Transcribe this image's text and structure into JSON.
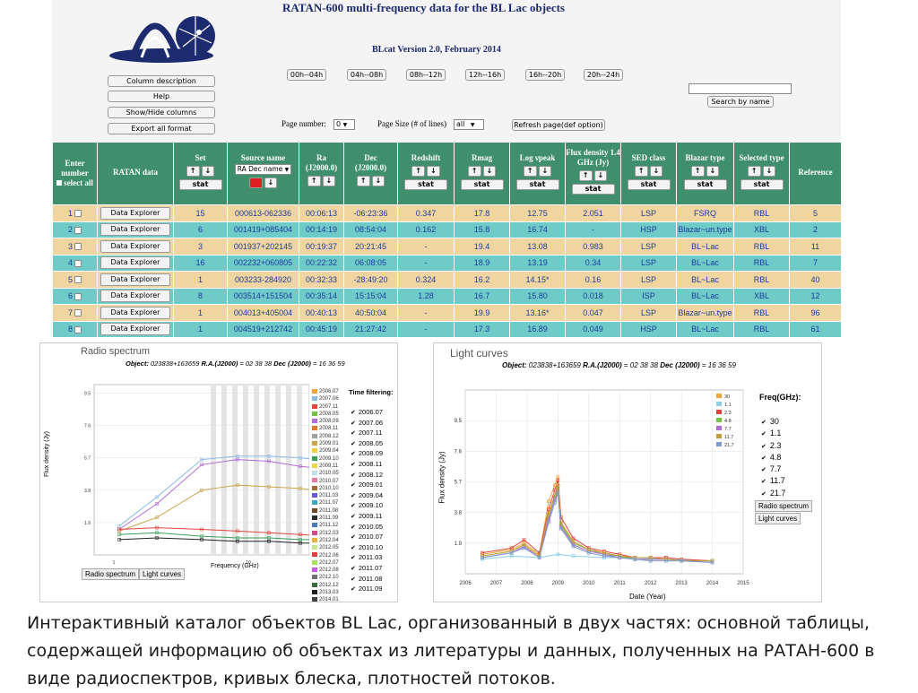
{
  "header": {
    "title": "RATAN-600 multi-frequency data for the BL Lac objects",
    "version": "BLcat Version 2.0, February 2014"
  },
  "sidebar": [
    "Column description",
    "Help",
    "Show/Hide columns",
    "Export all format"
  ],
  "time_buttons": [
    "00h--04h",
    "04h--08h",
    "08h--12h",
    "12h--16h",
    "16h--20h",
    "20h--24h"
  ],
  "search": {
    "value": "",
    "button": "Search by name"
  },
  "paging": {
    "page_label": "Page number:",
    "page_value": "0",
    "size_label": "Page Size (# of lines)",
    "size_value": "all",
    "refresh": "Refresh page(def option)"
  },
  "table": {
    "headers": {
      "enter": "Enter number",
      "select_all": "select all",
      "ratan": "RATAN data",
      "set": "Set",
      "source": "Source name",
      "source_sort": "RA Dec name",
      "ra": "Ra (J2000.0)",
      "dec": "Dec (J2000.0)",
      "redshift": "Redshift",
      "rmag": "Rmag",
      "lognu": "Log νpeak",
      "flux": "Flux density 1.4 GHz (Jy)",
      "sed": "SED class",
      "blazar": "Blazar type",
      "selected": "Selected type",
      "reference": "Reference"
    },
    "stat_label": "stat",
    "up": "↑",
    "down": "↓",
    "explorer_label": "Data Explorer",
    "rows": [
      {
        "n": "1",
        "set": "15",
        "name": "000613-062336",
        "ra": "00:06:13",
        "dec": "-06:23:36",
        "z": "0.347",
        "rmag": "17.8",
        "lognu": "12.75",
        "flux": "2.051",
        "sed": "LSP",
        "btype": "FSRQ",
        "stype": "RBL",
        "ref": "5"
      },
      {
        "n": "2",
        "set": "6",
        "name": "001419+085404",
        "ra": "00:14:19",
        "dec": "08:54:04",
        "z": "0.162",
        "rmag": "15.8",
        "lognu": "16.74",
        "flux": "-",
        "sed": "HSP",
        "btype": "Blazar~un.type",
        "stype": "XBL",
        "ref": "2"
      },
      {
        "n": "3",
        "set": "3",
        "name": "001937+202145",
        "ra": "00:19:37",
        "dec": "20:21:45",
        "z": "-",
        "rmag": "19.4",
        "lognu": "13.08",
        "flux": "0.983",
        "sed": "LSP",
        "btype": "BL~Lac",
        "stype": "RBL",
        "ref": "11"
      },
      {
        "n": "4",
        "set": "16",
        "name": "002232+060805",
        "ra": "00:22:32",
        "dec": "06:08:05",
        "z": "-",
        "rmag": "18.9",
        "lognu": "13.19",
        "flux": "0.34",
        "sed": "LSP",
        "btype": "BL~Lac",
        "stype": "RBL",
        "ref": "7"
      },
      {
        "n": "5",
        "set": "1",
        "name": "003233-284920",
        "ra": "00:32:33",
        "dec": "-28:49:20",
        "z": "0.324",
        "rmag": "16.2",
        "lognu": "14.15*",
        "flux": "0.16",
        "sed": "LSP",
        "btype": "BL~Lac",
        "stype": "RBL",
        "ref": "40"
      },
      {
        "n": "6",
        "set": "8",
        "name": "003514+151504",
        "ra": "00:35:14",
        "dec": "15:15:04",
        "z": "1.28",
        "rmag": "16.7",
        "lognu": "15.80",
        "flux": "0.018",
        "sed": "ISP",
        "btype": "BL~Lac",
        "stype": "XBL",
        "ref": "12"
      },
      {
        "n": "7",
        "set": "1",
        "name": "004013+405004",
        "ra": "00:40:13",
        "dec": "40:50:04",
        "z": "-",
        "rmag": "19.9",
        "lognu": "13.16*",
        "flux": "0.047",
        "sed": "LSP",
        "btype": "Blazar~un.type",
        "stype": "RBL",
        "ref": "96"
      },
      {
        "n": "8",
        "set": "1",
        "name": "004519+212742",
        "ra": "00:45:19",
        "dec": "21:27:42",
        "z": "-",
        "rmag": "17.3",
        "lognu": "16.89",
        "flux": "0.049",
        "sed": "HSP",
        "btype": "BL~Lac",
        "stype": "RBL",
        "ref": "61"
      }
    ]
  },
  "radio": {
    "title": "Radio spectrum",
    "object_label": "Object:",
    "object_name": "023838+163659",
    "ra_label": "R.A.(J2000)",
    "ra_value": "= 02 38 38",
    "dec_label": "Dec (J2000)",
    "dec_value": "= 16 36 59",
    "time_filtering": "Time filtering:",
    "epochs": [
      "2006.07",
      "2007.06",
      "2007.11",
      "2008.05",
      "2008.09",
      "2008.11",
      "2008.12",
      "2009.01",
      "2009.04",
      "2009.10",
      "2009.11",
      "2010.05",
      "2010.07",
      "2010.10",
      "2011.03",
      "2011.07",
      "2011.08",
      "2011.09",
      "2011.12",
      "2012.03",
      "2012.04",
      "2012.05",
      "2012.06",
      "2012.07",
      "2012.08",
      "2012.10",
      "2012.12",
      "2013.03",
      "2014.01"
    ],
    "epoch_colors": [
      "#f2a33a",
      "#8bb9e8",
      "#e0473c",
      "#77c043",
      "#b26ad6",
      "#e07a2c",
      "#a0a0a0",
      "#c9a44a",
      "#f0d040",
      "#3a9e5a",
      "#e8d84a",
      "#c0e0f0",
      "#e67aa0",
      "#9c6b3a",
      "#6a5ad6",
      "#3aa8c0",
      "#6e4a2a",
      "#2a2a2a",
      "#4a7ac0",
      "#d04a8a",
      "#e8b040",
      "#c0e890",
      "#e04040",
      "#a8e060",
      "#c060e0",
      "#707070",
      "#3a6a3a",
      "#202020",
      "#404040"
    ],
    "filter_list": [
      "2006.07",
      "2007.06",
      "2007.11",
      "2008.05",
      "2008.09",
      "2008.11",
      "2008.12",
      "2009.01",
      "2009.04",
      "2009.10",
      "2009.11",
      "2010.05",
      "2010.07",
      "2010.10",
      "2011.03",
      "2011.07",
      "2011.08",
      "2011.09"
    ],
    "buttons": [
      "Radio spectrum",
      "Light curves"
    ]
  },
  "light": {
    "title": "Light curves",
    "object_label": "Object:",
    "object_name": "023838+163659",
    "ra_label": "R.A.(J2000)",
    "ra_value": "= 02 38 38",
    "dec_label": "Dec (J2000)",
    "dec_value": "= 16 36 59",
    "freq_title": "Freq(GHz):",
    "freqs": [
      "30",
      "1.1",
      "2.3",
      "4.8",
      "7.7",
      "11.7",
      "21.7"
    ],
    "freq_colors": [
      "#f2a33a",
      "#8bd0e8",
      "#e0473c",
      "#77c043",
      "#b26ad6",
      "#c49a3a",
      "#7a9ac8"
    ],
    "buttons": [
      "Radio spectrum",
      "Light curves"
    ]
  },
  "chart_data": [
    {
      "type": "line",
      "title": "Radio spectrum",
      "xlabel": "Frequency (GHz)",
      "ylabel": "Flux density (Jy)",
      "x_ticks": [
        "1",
        "10"
      ],
      "y_ticks": [
        "1.9",
        "3.8",
        "5.7",
        "7.6",
        "9.5"
      ],
      "grid": true,
      "legend": "right",
      "series": [
        {
          "values": [
            1.7,
            3.4,
            5.6,
            5.8,
            5.8,
            5.7,
            5.5
          ]
        },
        {
          "values": [
            1.5,
            3.0,
            5.3,
            5.6,
            5.5,
            5.2,
            5.0
          ]
        },
        {
          "values": [
            1.4,
            2.2,
            3.8,
            4.1,
            4.0,
            3.9,
            3.7
          ]
        },
        {
          "values": [
            1.5,
            1.6,
            1.5,
            1.4,
            1.3,
            1.2,
            1.1
          ]
        },
        {
          "values": [
            1.2,
            1.3,
            1.1,
            1.0,
            1.0,
            0.9,
            0.9
          ]
        },
        {
          "values": [
            0.9,
            1.0,
            0.9,
            0.8,
            0.8,
            0.7,
            0.7
          ]
        }
      ]
    },
    {
      "type": "line",
      "title": "Light curves",
      "xlabel": "Date (Year)",
      "ylabel": "Flux density (Jy)",
      "x_ticks": [
        "2006",
        "2007",
        "2008",
        "2009",
        "2010",
        "2011",
        "2012",
        "2013",
        "2014",
        "2015"
      ],
      "y_ticks": [
        "1.9",
        "3.8",
        "5.7",
        "7.6",
        "9.5"
      ],
      "grid": true,
      "legend": "top-right",
      "series": [
        {
          "name": "30",
          "x": [
            2006.55,
            2007.5,
            2007.9,
            2008.4,
            2008.7,
            2008.9,
            2009.0,
            2009.1,
            2009.5,
            2010.0,
            2010.5,
            2011.0,
            2011.5,
            2012.0,
            2012.5,
            2013.0,
            2014.0
          ],
          "values": [
            1.2,
            1.5,
            1.9,
            1.2,
            4.5,
            5.5,
            6.0,
            3.2,
            2.0,
            1.5,
            1.3,
            1.1,
            1.0,
            1.0,
            1.0,
            0.9,
            0.8
          ]
        },
        {
          "name": "1.1",
          "x": [
            2006.55,
            2007.5,
            2008.4,
            2009.0,
            2009.5,
            2010.5,
            2011.5,
            2012.5,
            2014.0
          ],
          "values": [
            0.9,
            1.1,
            1.0,
            1.2,
            1.1,
            1.0,
            1.0,
            0.9,
            0.8
          ]
        },
        {
          "name": "2.3",
          "x": [
            2006.55,
            2007.5,
            2007.9,
            2008.4,
            2008.7,
            2008.9,
            2009.0,
            2009.1,
            2009.5,
            2010.0,
            2010.5,
            2011.0,
            2011.5,
            2012.0,
            2012.5,
            2013.0,
            2014.0
          ],
          "values": [
            1.3,
            1.6,
            2.1,
            1.3,
            4.0,
            5.2,
            5.8,
            3.5,
            2.2,
            1.6,
            1.4,
            1.2,
            1.0,
            1.0,
            1.0,
            0.9,
            0.8
          ]
        },
        {
          "name": "4.8",
          "x": [
            2006.55,
            2007.5,
            2007.9,
            2008.4,
            2008.7,
            2008.9,
            2009.0,
            2009.1,
            2009.5,
            2010.0,
            2010.5,
            2011.0,
            2011.5,
            2012.0,
            2012.5,
            2013.0,
            2014.0
          ],
          "values": [
            1.1,
            1.4,
            1.8,
            1.1,
            3.6,
            4.8,
            5.4,
            3.0,
            1.9,
            1.5,
            1.2,
            1.1,
            0.9,
            0.9,
            0.9,
            0.8,
            0.8
          ]
        },
        {
          "name": "7.7",
          "x": [
            2006.55,
            2007.5,
            2007.9,
            2008.4,
            2008.7,
            2008.9,
            2009.0,
            2009.1,
            2009.5,
            2010.0,
            2010.5,
            2011.0,
            2011.5,
            2012.0,
            2012.5,
            2013.0,
            2014.0
          ],
          "values": [
            1.0,
            1.3,
            1.7,
            1.0,
            3.4,
            4.6,
            5.2,
            2.9,
            1.8,
            1.4,
            1.2,
            1.0,
            0.9,
            0.9,
            0.9,
            0.8,
            0.7
          ]
        },
        {
          "name": "11.7",
          "x": [
            2006.55,
            2007.5,
            2007.9,
            2008.4,
            2008.7,
            2008.9,
            2009.0,
            2009.1,
            2009.5,
            2010.0,
            2010.5,
            2011.0,
            2011.5,
            2012.0,
            2012.5,
            2013.0,
            2014.0
          ],
          "values": [
            1.1,
            1.4,
            1.8,
            1.1,
            3.7,
            4.9,
            5.5,
            3.1,
            2.0,
            1.5,
            1.3,
            1.1,
            1.0,
            1.0,
            0.9,
            0.8,
            0.8
          ]
        },
        {
          "name": "21.7",
          "x": [
            2006.55,
            2007.5,
            2007.9,
            2008.4,
            2008.7,
            2008.9,
            2009.0,
            2009.1,
            2009.5,
            2010.0,
            2010.5,
            2011.0,
            2011.5,
            2012.0,
            2012.5,
            2013.0,
            2014.0
          ],
          "values": [
            1.0,
            1.3,
            1.6,
            1.0,
            3.2,
            4.4,
            5.0,
            2.8,
            1.7,
            1.3,
            1.1,
            1.0,
            0.9,
            0.8,
            0.8,
            0.8,
            0.7
          ]
        }
      ]
    }
  ],
  "caption": "Интерактивный каталог объектов BL Lac, организованный в двух частях: основной таблицы, содержащей информацию об объектах из литературы и данных, полученных на РАТАН-600 в виде радиоспектров, кривых блеска, плотностей потоков."
}
